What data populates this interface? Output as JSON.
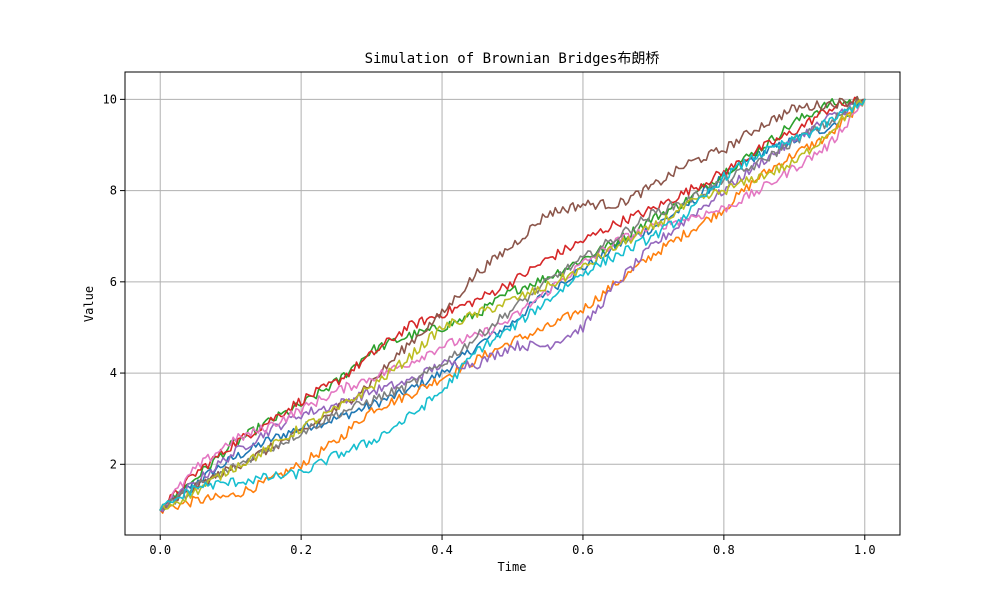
{
  "chart_data": {
    "type": "line",
    "title": "Simulation of Brownian Bridges布朗桥",
    "xlabel": "Time",
    "ylabel": "Value",
    "xlim": [
      -0.05,
      1.05
    ],
    "ylim": [
      0.45,
      10.6
    ],
    "xticks": [
      0.0,
      0.2,
      0.4,
      0.6,
      0.8,
      1.0
    ],
    "xtick_labels": [
      "0.0",
      "0.2",
      "0.4",
      "0.6",
      "0.8",
      "1.0"
    ],
    "yticks": [
      2,
      4,
      6,
      8,
      10
    ],
    "ytick_labels": [
      "2",
      "4",
      "6",
      "8",
      "10"
    ],
    "grid": true,
    "legend": "none",
    "x": [
      0.0,
      0.05,
      0.1,
      0.15,
      0.2,
      0.25,
      0.3,
      0.35,
      0.4,
      0.45,
      0.5,
      0.55,
      0.6,
      0.65,
      0.7,
      0.75,
      0.8,
      0.85,
      0.9,
      0.95,
      1.0
    ],
    "series": [
      {
        "color": "#1f77b4",
        "values": [
          1.0,
          1.6,
          2.1,
          2.5,
          2.8,
          3.0,
          3.3,
          3.6,
          4.0,
          4.6,
          5.1,
          5.8,
          6.3,
          6.8,
          7.2,
          7.7,
          8.3,
          8.8,
          9.1,
          9.4,
          10.0
        ]
      },
      {
        "color": "#ff7f0e",
        "values": [
          1.0,
          1.2,
          1.3,
          1.6,
          2.0,
          2.5,
          3.2,
          3.5,
          3.9,
          4.3,
          4.7,
          5.0,
          5.4,
          6.0,
          6.6,
          7.1,
          7.6,
          8.3,
          8.8,
          9.2,
          10.0
        ]
      },
      {
        "color": "#2ca02c",
        "values": [
          1.0,
          1.7,
          2.4,
          2.9,
          3.3,
          3.8,
          4.5,
          4.8,
          5.0,
          5.3,
          5.8,
          6.1,
          6.5,
          6.9,
          7.4,
          7.8,
          8.4,
          8.9,
          9.5,
          9.9,
          10.0
        ]
      },
      {
        "color": "#d62728",
        "values": [
          1.0,
          1.8,
          2.4,
          2.9,
          3.4,
          3.8,
          4.4,
          5.0,
          5.3,
          5.6,
          6.0,
          6.5,
          6.9,
          7.3,
          7.6,
          8.0,
          8.4,
          8.9,
          9.3,
          9.8,
          10.0
        ]
      },
      {
        "color": "#9467bd",
        "values": [
          1.0,
          1.6,
          2.2,
          2.7,
          3.1,
          3.3,
          3.6,
          3.8,
          4.2,
          4.2,
          4.6,
          4.6,
          5.0,
          6.0,
          6.8,
          7.4,
          8.0,
          8.6,
          9.1,
          9.6,
          10.0
        ]
      },
      {
        "color": "#8c564b",
        "values": [
          1.0,
          1.5,
          1.9,
          2.3,
          2.7,
          3.2,
          3.8,
          4.6,
          5.3,
          6.2,
          6.8,
          7.5,
          7.7,
          7.7,
          8.1,
          8.6,
          8.9,
          9.4,
          9.8,
          9.9,
          10.0
        ]
      },
      {
        "color": "#e377c2",
        "values": [
          1.0,
          1.9,
          2.5,
          2.8,
          3.2,
          3.6,
          3.9,
          4.2,
          4.6,
          4.8,
          5.2,
          5.8,
          6.4,
          6.9,
          7.2,
          7.4,
          7.6,
          8.0,
          8.5,
          9.0,
          10.0
        ]
      },
      {
        "color": "#7f7f7f",
        "values": [
          1.0,
          1.5,
          1.9,
          2.3,
          2.7,
          3.1,
          3.4,
          3.7,
          4.2,
          4.8,
          5.4,
          6.0,
          6.5,
          7.0,
          7.5,
          7.8,
          8.2,
          8.6,
          9.1,
          9.5,
          10.0
        ]
      },
      {
        "color": "#bcbd22",
        "values": [
          1.0,
          1.4,
          1.9,
          2.3,
          2.8,
          3.2,
          3.7,
          4.3,
          5.0,
          5.3,
          5.6,
          5.9,
          6.3,
          6.8,
          7.2,
          7.7,
          8.0,
          8.3,
          8.6,
          9.3,
          10.0
        ]
      },
      {
        "color": "#17becf",
        "values": [
          1.0,
          1.5,
          1.6,
          1.7,
          1.8,
          2.2,
          2.5,
          3.0,
          3.6,
          4.5,
          5.0,
          5.6,
          6.2,
          6.6,
          7.0,
          7.5,
          8.3,
          8.8,
          9.1,
          9.5,
          10.0
        ]
      }
    ]
  }
}
